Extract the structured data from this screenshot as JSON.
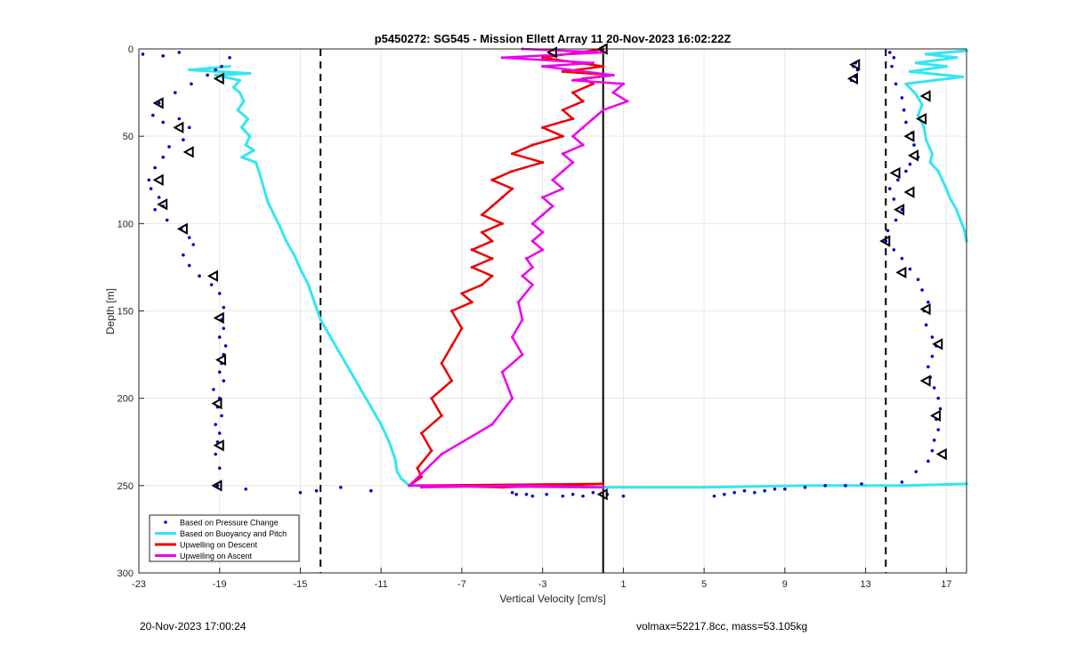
{
  "footer": {
    "timestamp": "20-Nov-2023 17:00:24",
    "params": "volmax=52217.8cc, mass=53.105kg"
  },
  "chart_data": {
    "type": "line",
    "title": "p5450272: SG545 - Mission Ellett Array 11 20-Nov-2023 16:02:22Z",
    "xlabel": "Vertical Velocity [cm/s]",
    "ylabel": "Depth [m]",
    "xlim": [
      -23,
      18
    ],
    "ylim": [
      0,
      300
    ],
    "y_reversed": true,
    "x_ticks": [
      -23,
      -19,
      -15,
      -11,
      -7,
      -3,
      1,
      5,
      9,
      13,
      17
    ],
    "y_ticks": [
      0,
      50,
      100,
      150,
      200,
      250,
      300
    ],
    "grid": true,
    "legend_position": "bottom-left",
    "colors": {
      "pressure": "#0000cc",
      "buoyancy": "#33e6f2",
      "descent": "#ee0000",
      "ascent": "#ee00ee",
      "marker": "#000000",
      "reference": "#000000"
    },
    "series": [
      {
        "name": "Based on Pressure Change",
        "style": "dots",
        "segments": [
          {
            "x": [
              -18.9,
              -19.2,
              -19.6,
              -20.4,
              -21.2,
              -22.0,
              -22.3,
              -21.8,
              -21.0,
              -20.5,
              -20.8,
              -21.5,
              -21.8,
              -22.2,
              -22.5,
              -22.4,
              -22.0,
              -21.8,
              -22.2,
              -21.6,
              -20.9,
              -20.5,
              -20.3,
              -20.8,
              -20.5,
              -20.0,
              -19.4,
              -19.0,
              -18.8,
              -18.9,
              -18.8,
              -19.0,
              -18.7,
              -18.8,
              -18.9,
              -19.0,
              -18.8,
              -19.3,
              -19.0,
              -19.1,
              -18.9,
              -19.2,
              -19.0,
              -19.1,
              -19.2,
              -19.0,
              -19.1
            ],
            "y": [
              10,
              12,
              15,
              20,
              25,
              31,
              38,
              42,
              40,
              45,
              52,
              56,
              62,
              68,
              75,
              80,
              85,
              90,
              92,
              98,
              103,
              108,
              112,
              118,
              124,
              130,
              135,
              140,
              148,
              155,
              160,
              165,
              170,
              175,
              180,
              185,
              190,
              195,
              200,
              205,
              210,
              215,
              220,
              225,
              232,
              240,
              250
            ]
          },
          {
            "x": [
              12.5,
              12.4,
              12.6,
              12.5,
              12.3
            ],
            "y": [
              8,
              10,
              12,
              16,
              18
            ]
          },
          {
            "x": [
              14.2,
              14.4,
              14.3,
              14.5,
              14.8,
              14.9,
              15.0,
              15.3,
              15.4,
              15.6,
              15.2,
              15.0,
              14.6,
              14.2,
              14.4,
              14.8,
              14.5,
              14.1,
              14.0,
              14.4,
              14.8,
              15.2,
              15.6,
              15.8,
              16.1,
              15.9,
              16.0,
              16.3,
              16.5,
              16.3,
              16.1,
              16.2,
              16.4,
              16.6,
              16.7,
              16.5,
              16.6,
              16.4,
              16.3,
              16.1,
              15.5,
              14.8
            ],
            "y": [
              2,
              5,
              10,
              20,
              28,
              35,
              42,
              48,
              55,
              62,
              66,
              70,
              75,
              80,
              86,
              92,
              98,
              104,
              110,
              115,
              120,
              126,
              132,
              138,
              145,
              150,
              158,
              165,
              170,
              176,
              182,
              188,
              194,
              200,
              206,
              212,
              218,
              224,
              230,
              236,
              242,
              248
            ]
          },
          {
            "x": [
              -22.8,
              -21.8,
              -21.0,
              -18.5,
              -17.7,
              -15.0,
              -14.2,
              -13.0,
              -11.5
            ],
            "y": [
              3,
              4,
              2,
              5,
              252,
              254,
              253,
              251,
              253
            ]
          },
          {
            "x": [
              -4.5,
              -4.3,
              -3.8,
              -3.5,
              -2.8,
              -2.0,
              -1.5,
              -1.0,
              -0.5,
              0.2,
              1.0,
              5.5,
              6.0,
              6.5,
              7.0,
              7.5,
              8.0,
              8.5,
              9.0,
              10.0,
              11.0,
              12.0,
              12.8
            ],
            "y": [
              254,
              255,
              255,
              256,
              255,
              256,
              255,
              256,
              254,
              255,
              256,
              256,
              255,
              254,
              253,
              254,
              253,
              252,
              252,
              251,
              250,
              250,
              249
            ]
          }
        ]
      },
      {
        "name": "Based on Buoyancy and Pitch",
        "style": "line",
        "segments": [
          {
            "x": [
              -18.5,
              -20.5,
              -17.5,
              -19.2,
              -18.0,
              -18.3,
              -18.0,
              -17.8,
              -18.1,
              -17.6,
              -17.9,
              -17.5,
              -17.7,
              -17.3,
              -17.9,
              -17.2,
              -17.0,
              -16.8,
              -16.6,
              -16.3,
              -16.0,
              -15.7,
              -15.3,
              -15.0,
              -14.6,
              -14.3,
              -14.0,
              -13.5,
              -13.0,
              -12.5,
              -12.0,
              -11.5,
              -11.0,
              -10.6,
              -10.3,
              -10.2,
              -10.0,
              -9.6
            ],
            "y": [
              10,
              12,
              14,
              15,
              18,
              22,
              25,
              30,
              35,
              40,
              45,
              50,
              55,
              58,
              62,
              65,
              72,
              80,
              88,
              95,
              102,
              110,
              118,
              126,
              135,
              145,
              155,
              165,
              175,
              185,
              195,
              205,
              215,
              225,
              235,
              242,
              246,
              250
            ]
          },
          {
            "x": [
              -9.6,
              0.0,
              5.0,
              10.0,
              13.0,
              15.0,
              18.0
            ],
            "y": [
              250,
              251,
              251,
              250,
              250,
              250,
              249
            ]
          },
          {
            "x": [
              18.0,
              16.0,
              17.5,
              15.5,
              17.0,
              15.2,
              17.8,
              15.0,
              15.5,
              15.8,
              15.6,
              15.9,
              16.0,
              16.3,
              16.2,
              16.6,
              16.8,
              17.0,
              17.2,
              17.5,
              17.7,
              17.9,
              18.0
            ],
            "y": [
              1,
              3,
              5,
              8,
              10,
              13,
              16,
              20,
              26,
              32,
              38,
              45,
              52,
              60,
              65,
              70,
              75,
              80,
              86,
              92,
              98,
              104,
              110
            ]
          }
        ]
      },
      {
        "name": "Upwelling on Descent",
        "style": "line",
        "segments": [
          {
            "x": [
              0.0,
              -3.0,
              0.0,
              -2.0,
              0.5,
              -1.0,
              -0.5,
              -1.5,
              -1.0,
              -2.0,
              -1.5,
              -3.0,
              -2.0,
              -3.5,
              -4.5,
              -3.0,
              -4.5,
              -5.5,
              -4.5,
              -5.0,
              -5.5,
              -6.0,
              -5.0,
              -6.0,
              -5.5,
              -6.5,
              -5.5,
              -6.5,
              -5.5,
              -6.0,
              -7.0,
              -6.5,
              -7.5,
              -7.0,
              -7.5,
              -8.0,
              -7.5,
              -8.5,
              -8.0,
              -9.0,
              -8.5,
              -9.2,
              -9.0,
              -9.6
            ],
            "y": [
              0,
              5,
              10,
              13,
              15,
              17,
              20,
              25,
              30,
              35,
              40,
              45,
              50,
              55,
              60,
              65,
              70,
              75,
              80,
              85,
              90,
              95,
              100,
              105,
              110,
              115,
              120,
              125,
              130,
              135,
              140,
              145,
              150,
              160,
              170,
              180,
              190,
              200,
              210,
              220,
              230,
              240,
              245,
              250
            ]
          },
          {
            "x": [
              -9.6,
              0.0,
              -5.0,
              -9.0
            ],
            "y": [
              250,
              249,
              251,
              250
            ]
          }
        ]
      },
      {
        "name": "Upwelling on Ascent",
        "style": "line",
        "segments": [
          {
            "x": [
              -4.0,
              0.0,
              -5.0,
              -0.5,
              -3.0,
              0.5,
              -1.5,
              1.0,
              0.5,
              1.2,
              0.0,
              -0.5,
              -1.0,
              -1.5,
              -1.0,
              -2.0,
              -1.5,
              -2.0,
              -2.5,
              -2.0,
              -3.0,
              -2.5,
              -3.0,
              -3.5,
              -3.0,
              -3.5,
              -3.0,
              -3.8,
              -3.5,
              -4.0,
              -3.5,
              -4.2,
              -4.0,
              -4.5,
              -4.0,
              -5.0,
              -4.5,
              -5.5,
              -8.0,
              -9.6
            ],
            "y": [
              0,
              2,
              5,
              8,
              10,
              15,
              18,
              20,
              25,
              30,
              35,
              40,
              45,
              50,
              55,
              60,
              65,
              70,
              75,
              80,
              85,
              90,
              95,
              100,
              105,
              110,
              115,
              120,
              125,
              130,
              135,
              145,
              155,
              165,
              175,
              185,
              200,
              215,
              232,
              250
            ]
          },
          {
            "x": [
              -9.6,
              0.0,
              -4.0,
              -9.0
            ],
            "y": [
              250,
              251,
              250,
              251
            ]
          }
        ]
      }
    ],
    "reference_lines": [
      {
        "x": -14,
        "style": "dashed"
      },
      {
        "x": 14,
        "style": "dashed"
      },
      {
        "x": 0,
        "style": "solid"
      }
    ],
    "markers": {
      "shape": "triangle-left",
      "points": [
        {
          "x": -19.0,
          "y": 17
        },
        {
          "x": -22.0,
          "y": 31
        },
        {
          "x": -21.0,
          "y": 45
        },
        {
          "x": -20.5,
          "y": 59
        },
        {
          "x": -22.0,
          "y": 75
        },
        {
          "x": -21.8,
          "y": 89
        },
        {
          "x": -20.8,
          "y": 103
        },
        {
          "x": -19.3,
          "y": 130
        },
        {
          "x": -19.0,
          "y": 154
        },
        {
          "x": -18.9,
          "y": 178
        },
        {
          "x": -19.1,
          "y": 203
        },
        {
          "x": -19.0,
          "y": 227
        },
        {
          "x": -19.1,
          "y": 250
        },
        {
          "x": -2.5,
          "y": 2
        },
        {
          "x": 0.0,
          "y": 0
        },
        {
          "x": 0.0,
          "y": 255
        },
        {
          "x": 12.5,
          "y": 9
        },
        {
          "x": 12.4,
          "y": 17
        },
        {
          "x": 16.0,
          "y": 27
        },
        {
          "x": 15.8,
          "y": 40
        },
        {
          "x": 15.2,
          "y": 50
        },
        {
          "x": 15.4,
          "y": 61
        },
        {
          "x": 14.5,
          "y": 71
        },
        {
          "x": 15.2,
          "y": 82
        },
        {
          "x": 14.7,
          "y": 92
        },
        {
          "x": 14.0,
          "y": 110
        },
        {
          "x": 14.8,
          "y": 128
        },
        {
          "x": 16.0,
          "y": 149
        },
        {
          "x": 16.6,
          "y": 169
        },
        {
          "x": 16.0,
          "y": 190
        },
        {
          "x": 16.5,
          "y": 210
        },
        {
          "x": 16.8,
          "y": 232
        }
      ]
    }
  }
}
